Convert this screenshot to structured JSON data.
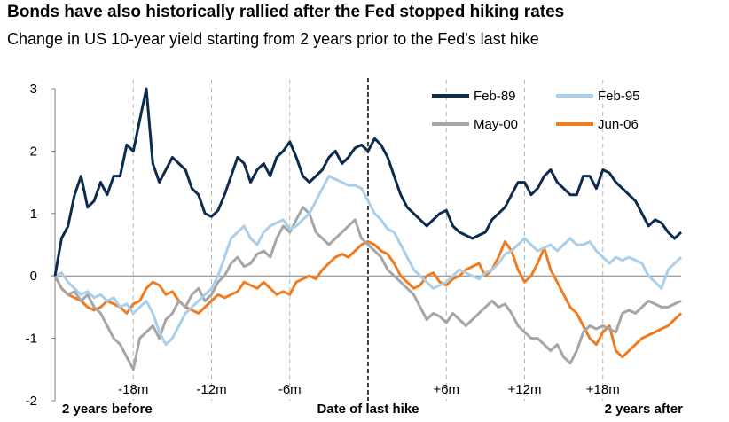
{
  "title": "Bonds have also historically rallied after the Fed stopped hiking rates",
  "subtitle": "Change in US 10-year yield starting from 2 years prior to the Fed's last hike",
  "chart_data": {
    "type": "line",
    "title": "Bonds have also historically rallied after the Fed stopped hiking rates",
    "subtitle": "Change in US 10-year yield starting from 2 years prior to the Fed's last hike",
    "xlabel": "",
    "ylabel": "",
    "ylim": [
      -2,
      3
    ],
    "yticks": [
      "3",
      "2",
      "1",
      "0",
      "-1",
      "-2"
    ],
    "xlim": [
      -24,
      24
    ],
    "x_month_ticks": [
      {
        "label": "-18m",
        "x": -18
      },
      {
        "label": "-12m",
        "x": -12
      },
      {
        "label": "-6m",
        "x": -6
      },
      {
        "label": "+6m",
        "x": 6
      },
      {
        "label": "+12m",
        "x": 12
      },
      {
        "label": "+18m",
        "x": 18
      }
    ],
    "x_bold_labels": [
      {
        "label": "2 years before",
        "x": -24
      },
      {
        "label": "Date of last hike",
        "x": 0
      },
      {
        "label": "2 years after",
        "x": 24
      }
    ],
    "vertical_reference": {
      "x": 0,
      "style": "dashed-black"
    },
    "grid_verticals": [
      -18,
      -12,
      -6,
      6,
      12,
      18
    ],
    "legend_position": "top-right",
    "series": [
      {
        "name": "Feb-89",
        "color": "#0d2b4e",
        "x": [
          -24,
          -23.5,
          -23,
          -22.5,
          -22,
          -21.5,
          -21,
          -20.5,
          -20,
          -19.5,
          -19,
          -18.5,
          -18,
          -17.5,
          -17,
          -16.5,
          -16,
          -15.5,
          -15,
          -14.5,
          -14,
          -13.5,
          -13,
          -12.5,
          -12,
          -11.5,
          -11,
          -10.5,
          -10,
          -9.5,
          -9,
          -8.5,
          -8,
          -7.5,
          -7,
          -6.5,
          -6,
          -5.5,
          -5,
          -4.5,
          -4,
          -3.5,
          -3,
          -2.5,
          -2,
          -1.5,
          -1,
          -0.5,
          0,
          0.5,
          1,
          1.5,
          2,
          2.5,
          3,
          3.5,
          4,
          4.5,
          5,
          5.5,
          6,
          6.5,
          7,
          7.5,
          8,
          8.5,
          9,
          9.5,
          10,
          10.5,
          11,
          11.5,
          12,
          12.5,
          13,
          13.5,
          14,
          14.5,
          15,
          15.5,
          16,
          16.5,
          17,
          17.5,
          18,
          18.5,
          19,
          19.5,
          20,
          20.5,
          21,
          21.5,
          22,
          22.5,
          23,
          23.5,
          24
        ],
        "values": [
          0.0,
          0.6,
          0.8,
          1.3,
          1.6,
          1.1,
          1.2,
          1.5,
          1.3,
          1.6,
          1.6,
          2.1,
          2.0,
          2.5,
          3.0,
          1.8,
          1.5,
          1.7,
          1.9,
          1.8,
          1.7,
          1.4,
          1.3,
          1.0,
          0.95,
          1.05,
          1.3,
          1.6,
          1.9,
          1.8,
          1.5,
          1.7,
          1.8,
          1.6,
          1.9,
          2.0,
          2.15,
          1.9,
          1.6,
          1.5,
          1.6,
          1.7,
          1.9,
          2.0,
          1.8,
          1.9,
          2.05,
          2.1,
          2.0,
          2.2,
          2.1,
          1.9,
          1.6,
          1.3,
          1.1,
          1.0,
          0.9,
          0.8,
          0.9,
          1.0,
          1.05,
          0.8,
          0.7,
          0.65,
          0.6,
          0.65,
          0.7,
          0.9,
          1.0,
          1.1,
          1.3,
          1.5,
          1.5,
          1.3,
          1.4,
          1.6,
          1.7,
          1.5,
          1.4,
          1.3,
          1.3,
          1.6,
          1.6,
          1.4,
          1.7,
          1.65,
          1.5,
          1.4,
          1.3,
          1.2,
          1.0,
          0.8,
          0.9,
          0.85,
          0.7,
          0.6,
          0.7
        ]
      },
      {
        "name": "Feb-95",
        "color": "#a9cfea",
        "x": [
          -24,
          -23.5,
          -23,
          -22.5,
          -22,
          -21.5,
          -21,
          -20.5,
          -20,
          -19.5,
          -19,
          -18.5,
          -18,
          -17.5,
          -17,
          -16.5,
          -16,
          -15.5,
          -15,
          -14.5,
          -14,
          -13.5,
          -13,
          -12.5,
          -12,
          -11.5,
          -11,
          -10.5,
          -10,
          -9.5,
          -9,
          -8.5,
          -8,
          -7.5,
          -7,
          -6.5,
          -6,
          -5.5,
          -5,
          -4.5,
          -4,
          -3.5,
          -3,
          -2.5,
          -2,
          -1.5,
          -1,
          -0.5,
          0,
          0.5,
          1,
          1.5,
          2,
          2.5,
          3,
          3.5,
          4,
          4.5,
          5,
          5.5,
          6,
          6.5,
          7,
          7.5,
          8,
          8.5,
          9,
          9.5,
          10,
          10.5,
          11,
          11.5,
          12,
          12.5,
          13,
          13.5,
          14,
          14.5,
          15,
          15.5,
          16,
          16.5,
          17,
          17.5,
          18,
          18.5,
          19,
          19.5,
          20,
          20.5,
          21,
          21.5,
          22,
          22.5,
          23,
          23.5,
          24
        ],
        "values": [
          0.0,
          0.05,
          -0.1,
          -0.2,
          -0.3,
          -0.25,
          -0.35,
          -0.3,
          -0.4,
          -0.35,
          -0.5,
          -0.45,
          -0.6,
          -0.5,
          -0.4,
          -0.6,
          -0.9,
          -1.1,
          -1.0,
          -0.8,
          -0.6,
          -0.5,
          -0.4,
          -0.3,
          -0.2,
          0.0,
          0.3,
          0.6,
          0.7,
          0.8,
          0.6,
          0.5,
          0.7,
          0.8,
          0.85,
          0.9,
          0.75,
          0.8,
          0.9,
          1.0,
          1.2,
          1.4,
          1.6,
          1.55,
          1.5,
          1.45,
          1.45,
          1.4,
          1.2,
          1.0,
          0.9,
          0.75,
          0.7,
          0.5,
          0.3,
          0.1,
          0.0,
          -0.1,
          -0.2,
          -0.15,
          -0.1,
          0.0,
          0.1,
          0.05,
          0.0,
          -0.05,
          0.05,
          0.1,
          0.2,
          0.35,
          0.4,
          0.5,
          0.6,
          0.5,
          0.4,
          0.45,
          0.5,
          0.4,
          0.5,
          0.6,
          0.5,
          0.5,
          0.55,
          0.4,
          0.3,
          0.2,
          0.3,
          0.25,
          0.3,
          0.25,
          0.2,
          0.0,
          -0.1,
          -0.2,
          0.1,
          0.2,
          0.3
        ]
      },
      {
        "name": "May-00",
        "color": "#a6a6a6",
        "x": [
          -24,
          -23.5,
          -23,
          -22.5,
          -22,
          -21.5,
          -21,
          -20.5,
          -20,
          -19.5,
          -19,
          -18.5,
          -18,
          -17.5,
          -17,
          -16.5,
          -16,
          -15.5,
          -15,
          -14.5,
          -14,
          -13.5,
          -13,
          -12.5,
          -12,
          -11.5,
          -11,
          -10.5,
          -10,
          -9.5,
          -9,
          -8.5,
          -8,
          -7.5,
          -7,
          -6.5,
          -6,
          -5.5,
          -5,
          -4.5,
          -4,
          -3.5,
          -3,
          -2.5,
          -2,
          -1.5,
          -1,
          -0.5,
          0,
          0.5,
          1,
          1.5,
          2,
          2.5,
          3,
          3.5,
          4,
          4.5,
          5,
          5.5,
          6,
          6.5,
          7,
          7.5,
          8,
          8.5,
          9,
          9.5,
          10,
          10.5,
          11,
          11.5,
          12,
          12.5,
          13,
          13.5,
          14,
          14.5,
          15,
          15.5,
          16,
          16.5,
          17,
          17.5,
          18,
          18.5,
          19,
          19.5,
          20,
          20.5,
          21,
          21.5,
          22,
          22.5,
          23,
          23.5,
          24
        ],
        "values": [
          0.0,
          -0.2,
          -0.3,
          -0.25,
          -0.4,
          -0.3,
          -0.5,
          -0.6,
          -0.8,
          -1.0,
          -1.1,
          -1.3,
          -1.5,
          -1.0,
          -0.9,
          -0.8,
          -1.0,
          -0.7,
          -0.6,
          -0.4,
          -0.5,
          -0.3,
          -0.2,
          -0.4,
          -0.3,
          -0.1,
          0.0,
          0.2,
          0.3,
          0.15,
          0.2,
          0.35,
          0.4,
          0.3,
          0.6,
          0.8,
          0.7,
          0.9,
          1.1,
          1.0,
          0.7,
          0.6,
          0.5,
          0.6,
          0.7,
          0.8,
          0.9,
          0.6,
          0.5,
          0.4,
          0.3,
          0.1,
          0.0,
          -0.1,
          -0.2,
          -0.3,
          -0.5,
          -0.7,
          -0.6,
          -0.65,
          -0.75,
          -0.6,
          -0.7,
          -0.8,
          -0.7,
          -0.6,
          -0.5,
          -0.4,
          -0.5,
          -0.45,
          -0.6,
          -0.8,
          -0.9,
          -1.0,
          -1.0,
          -1.1,
          -1.2,
          -1.1,
          -1.3,
          -1.4,
          -1.2,
          -0.9,
          -0.8,
          -0.85,
          -0.8,
          -0.85,
          -0.9,
          -0.6,
          -0.55,
          -0.6,
          -0.5,
          -0.4,
          -0.45,
          -0.5,
          -0.5,
          -0.45,
          -0.4
        ]
      },
      {
        "name": "Jun-06",
        "color": "#f07c22",
        "x": [
          -24,
          -23.5,
          -23,
          -22.5,
          -22,
          -21.5,
          -21,
          -20.5,
          -20,
          -19.5,
          -19,
          -18.5,
          -18,
          -17.5,
          -17,
          -16.5,
          -16,
          -15.5,
          -15,
          -14.5,
          -14,
          -13.5,
          -13,
          -12.5,
          -12,
          -11.5,
          -11,
          -10.5,
          -10,
          -9.5,
          -9,
          -8.5,
          -8,
          -7.5,
          -7,
          -6.5,
          -6,
          -5.5,
          -5,
          -4.5,
          -4,
          -3.5,
          -3,
          -2.5,
          -2,
          -1.5,
          -1,
          -0.5,
          0,
          0.5,
          1,
          1.5,
          2,
          2.5,
          3,
          3.5,
          4,
          4.5,
          5,
          5.5,
          6,
          6.5,
          7,
          7.5,
          8,
          8.5,
          9,
          9.5,
          10,
          10.5,
          11,
          11.5,
          12,
          12.5,
          13,
          13.5,
          14,
          14.5,
          15,
          15.5,
          16,
          16.5,
          17,
          17.5,
          18,
          18.5,
          19,
          19.5,
          20,
          20.5,
          21,
          21.5,
          22,
          22.5,
          23,
          23.5,
          24
        ],
        "values": [
          0.0,
          -0.2,
          -0.3,
          -0.35,
          -0.4,
          -0.5,
          -0.55,
          -0.5,
          -0.4,
          -0.45,
          -0.5,
          -0.6,
          -0.45,
          -0.4,
          -0.2,
          -0.1,
          -0.15,
          -0.3,
          -0.25,
          -0.4,
          -0.5,
          -0.55,
          -0.6,
          -0.5,
          -0.4,
          -0.3,
          -0.35,
          -0.3,
          -0.25,
          -0.1,
          -0.15,
          -0.2,
          -0.1,
          -0.2,
          -0.3,
          -0.25,
          -0.3,
          -0.1,
          -0.05,
          0.0,
          -0.05,
          0.1,
          0.2,
          0.3,
          0.35,
          0.3,
          0.4,
          0.5,
          0.55,
          0.5,
          0.4,
          0.35,
          0.2,
          0.0,
          -0.1,
          -0.2,
          -0.15,
          0.0,
          0.05,
          -0.1,
          -0.15,
          -0.05,
          0.0,
          0.1,
          0.15,
          0.2,
          0.0,
          0.1,
          0.3,
          0.55,
          0.4,
          0.1,
          -0.1,
          0.0,
          0.2,
          0.45,
          0.1,
          -0.1,
          -0.3,
          -0.5,
          -0.6,
          -0.8,
          -1.0,
          -1.1,
          -0.9,
          -0.8,
          -1.2,
          -1.3,
          -1.2,
          -1.1,
          -1.0,
          -0.95,
          -0.9,
          -0.85,
          -0.8,
          -0.7,
          -0.6
        ]
      }
    ]
  }
}
